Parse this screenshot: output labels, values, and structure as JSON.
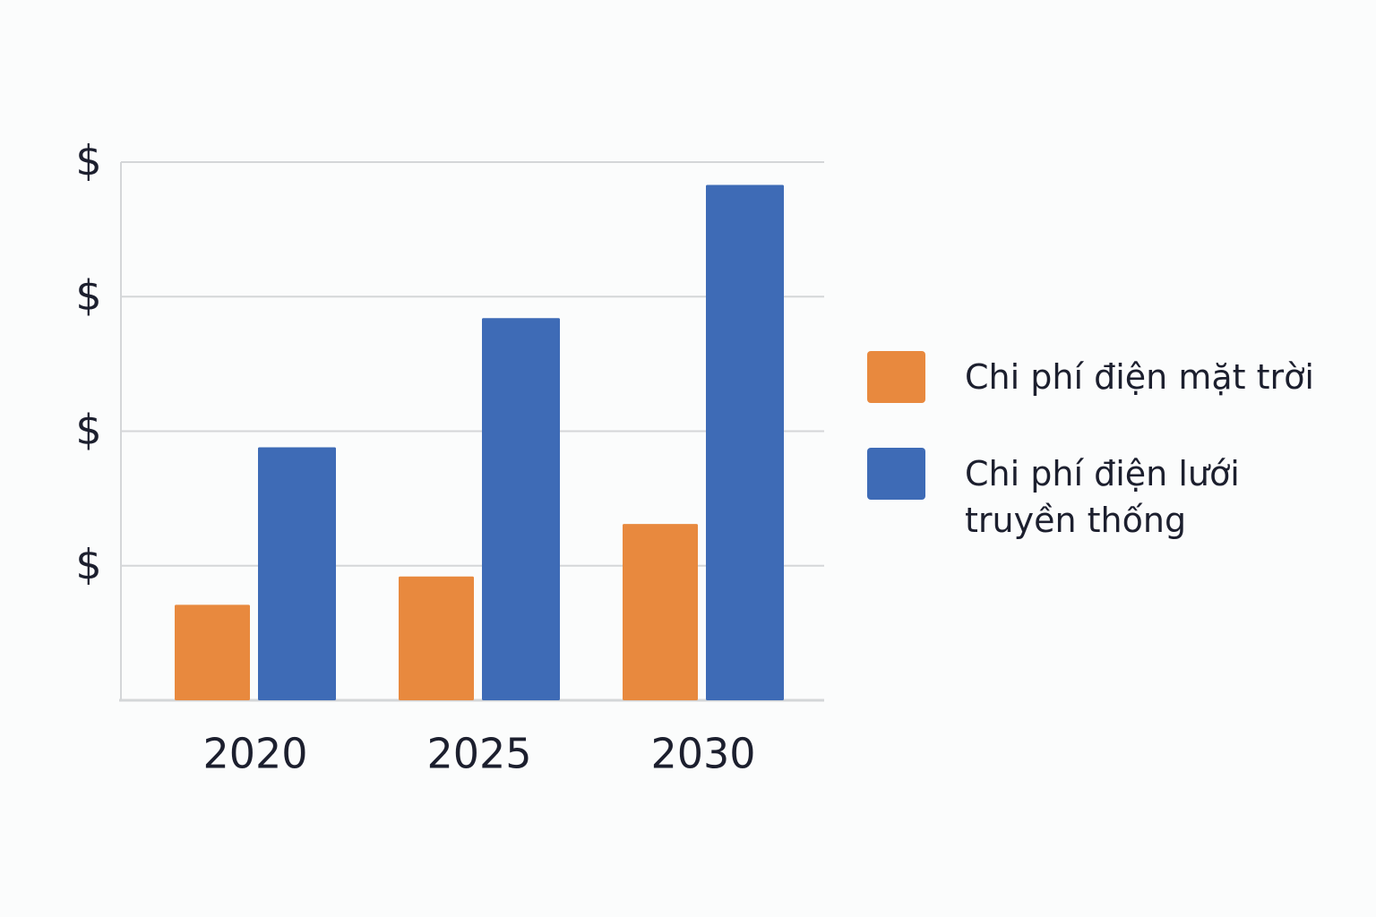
{
  "chart_data": {
    "type": "bar",
    "categories": [
      "2020",
      "2025",
      "2030"
    ],
    "series": [
      {
        "name": "Chi phí điện mặt trời",
        "color": "#e8893e",
        "values": [
          0.71,
          0.92,
          1.31
        ]
      },
      {
        "name": "Chi phí điện lưới truyền thống",
        "color": "#3e6bb6",
        "values": [
          1.88,
          2.84,
          3.83
        ]
      }
    ],
    "ylim": [
      0,
      4
    ],
    "yticks": [
      {
        "value": 1,
        "label": "$"
      },
      {
        "value": 2,
        "label": "$"
      },
      {
        "value": 3,
        "label": "$"
      },
      {
        "value": 4,
        "label": "$"
      }
    ],
    "grid": true
  }
}
